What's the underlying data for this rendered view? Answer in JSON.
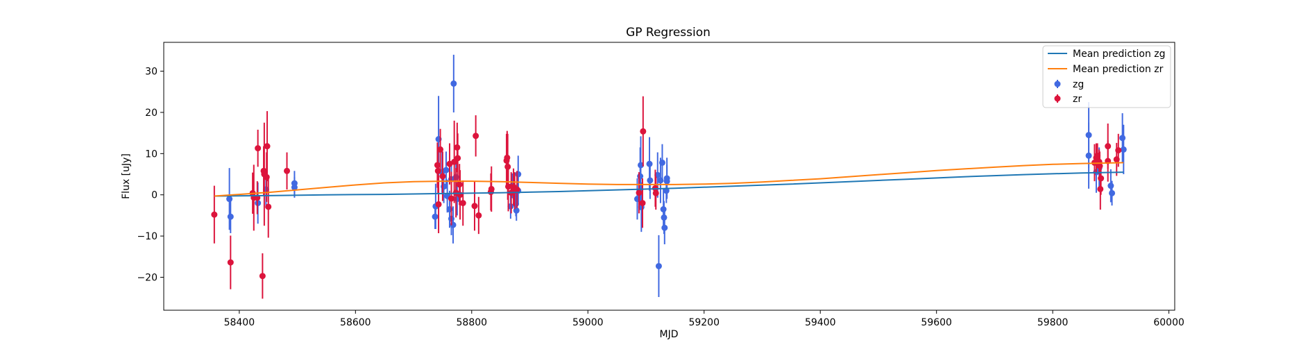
{
  "chart_data": {
    "type": "scatter",
    "title": "GP Regression",
    "xlabel": "MJD",
    "ylabel": "Flux [uJy]",
    "xlim": [
      58270,
      60010
    ],
    "ylim": [
      -28,
      37
    ],
    "xticks": [
      58400,
      58600,
      58800,
      59000,
      59200,
      59400,
      59600,
      59800,
      60000
    ],
    "yticks": [
      -20,
      -10,
      0,
      10,
      20,
      30
    ],
    "grid": false,
    "legend_position": "top-right",
    "lines": [
      {
        "name": "Mean prediction zg",
        "color": "#1f77b4",
        "points": [
          [
            58357,
            -0.3
          ],
          [
            58450,
            -0.2
          ],
          [
            58550,
            0.0
          ],
          [
            58650,
            0.1
          ],
          [
            58750,
            0.3
          ],
          [
            58850,
            0.5
          ],
          [
            58950,
            0.8
          ],
          [
            59050,
            1.2
          ],
          [
            59150,
            1.6
          ],
          [
            59250,
            2.1
          ],
          [
            59350,
            2.6
          ],
          [
            59450,
            3.2
          ],
          [
            59550,
            3.8
          ],
          [
            59650,
            4.4
          ],
          [
            59750,
            4.9
          ],
          [
            59850,
            5.3
          ],
          [
            59922,
            5.5
          ]
        ]
      },
      {
        "name": "Mean prediction zr",
        "color": "#ff7f0e",
        "points": [
          [
            58357,
            -0.3
          ],
          [
            58400,
            0.1
          ],
          [
            58450,
            0.6
          ],
          [
            58500,
            1.2
          ],
          [
            58550,
            1.8
          ],
          [
            58600,
            2.4
          ],
          [
            58650,
            2.9
          ],
          [
            58700,
            3.2
          ],
          [
            58750,
            3.3
          ],
          [
            58800,
            3.3
          ],
          [
            58850,
            3.2
          ],
          [
            58900,
            3.0
          ],
          [
            58950,
            2.8
          ],
          [
            59000,
            2.6
          ],
          [
            59050,
            2.5
          ],
          [
            59100,
            2.5
          ],
          [
            59150,
            2.5
          ],
          [
            59200,
            2.6
          ],
          [
            59250,
            2.8
          ],
          [
            59300,
            3.1
          ],
          [
            59350,
            3.5
          ],
          [
            59400,
            3.9
          ],
          [
            59450,
            4.4
          ],
          [
            59500,
            4.9
          ],
          [
            59550,
            5.4
          ],
          [
            59600,
            5.9
          ],
          [
            59650,
            6.3
          ],
          [
            59700,
            6.7
          ],
          [
            59750,
            7.1
          ],
          [
            59800,
            7.4
          ],
          [
            59850,
            7.6
          ],
          [
            59922,
            7.8
          ]
        ]
      }
    ],
    "series": [
      {
        "name": "zg",
        "color": "#4169e1",
        "points": [
          [
            58383,
            -1.0,
            7.5
          ],
          [
            58385,
            -5.3,
            4.0
          ],
          [
            58432,
            -2.0,
            5.0
          ],
          [
            58446,
            1.3,
            4.5
          ],
          [
            58495,
            2.8,
            3.0
          ],
          [
            58495,
            1.8,
            2.5
          ],
          [
            58737,
            -5.3,
            3.0
          ],
          [
            58738,
            -2.8,
            5.5
          ],
          [
            58743,
            13.5,
            10.5
          ],
          [
            58749,
            5.5,
            5.0
          ],
          [
            58752,
            2.0,
            4.0
          ],
          [
            58756,
            6.0,
            4.5
          ],
          [
            58758,
            -0.3,
            4.0
          ],
          [
            58762,
            -3.5,
            4.5
          ],
          [
            58765,
            3.8,
            4.0
          ],
          [
            58765,
            -5.8,
            4.0
          ],
          [
            58768,
            -7.3,
            4.5
          ],
          [
            58769,
            27.0,
            7.0
          ],
          [
            58773,
            4.3,
            4.0
          ],
          [
            58775,
            -1.0,
            4.0
          ],
          [
            58867,
            -2.8,
            3.0
          ],
          [
            58870,
            2.2,
            3.0
          ],
          [
            58875,
            -0.5,
            3.0
          ],
          [
            58876,
            -2.2,
            3.0
          ],
          [
            58877,
            -3.8,
            2.5
          ],
          [
            58880,
            5.0,
            4.5
          ],
          [
            58880,
            1.0,
            3.5
          ],
          [
            59085,
            -1.0,
            5.0
          ],
          [
            59090,
            4.5,
            7.0
          ],
          [
            59091,
            7.2,
            7.0
          ],
          [
            59092,
            -3.0,
            6.0
          ],
          [
            59106,
            7.5,
            6.5
          ],
          [
            59107,
            3.5,
            4.5
          ],
          [
            59120,
            4.8,
            5.5
          ],
          [
            59122,
            -17.3,
            7.5
          ],
          [
            59125,
            3.5,
            5.5
          ],
          [
            59128,
            7.8,
            4.5
          ],
          [
            59130,
            -3.5,
            5.0
          ],
          [
            59131,
            -5.5,
            4.0
          ],
          [
            59132,
            -8.0,
            4.0
          ],
          [
            59135,
            1.0,
            3.0
          ],
          [
            59136,
            3.3,
            4.0
          ],
          [
            59136,
            4.0,
            5.0
          ],
          [
            59862,
            14.5,
            8.0
          ],
          [
            59862,
            9.5,
            8.0
          ],
          [
            59875,
            5.5,
            5.0
          ],
          [
            59880,
            6.5,
            5.0
          ],
          [
            59900,
            2.2,
            4.0
          ],
          [
            59902,
            0.4,
            3.0
          ],
          [
            59920,
            13.8,
            6.0
          ],
          [
            59922,
            11.0,
            6.0
          ]
        ]
      },
      {
        "name": "zr",
        "color": "#dc143c",
        "points": [
          [
            58357,
            -4.8,
            7.0
          ],
          [
            58385,
            -16.4,
            6.5
          ],
          [
            58423,
            0.4,
            5.0
          ],
          [
            58425,
            -0.7,
            8.0
          ],
          [
            58431,
            -0.7,
            4.0
          ],
          [
            58432,
            11.3,
            4.5
          ],
          [
            58440,
            -19.7,
            5.5
          ],
          [
            58442,
            5.8,
            6.0
          ],
          [
            58443,
            5.0,
            12.5
          ],
          [
            58447,
            4.3,
            6.0
          ],
          [
            58448,
            11.8,
            8.5
          ],
          [
            58450,
            -2.9,
            7.5
          ],
          [
            58482,
            5.8,
            4.5
          ],
          [
            58741,
            7.2,
            5.5
          ],
          [
            58742,
            5.8,
            5.5
          ],
          [
            58743,
            -2.3,
            7.0
          ],
          [
            58746,
            11.0,
            5.0
          ],
          [
            58750,
            4.5,
            6.0
          ],
          [
            58762,
            7.5,
            5.0
          ],
          [
            58765,
            -0.9,
            6.5
          ],
          [
            58770,
            8.0,
            10.0
          ],
          [
            58773,
            0.5,
            6.0
          ],
          [
            58775,
            11.5,
            6.0
          ],
          [
            58776,
            8.9,
            6.0
          ],
          [
            58779,
            2.5,
            5.0
          ],
          [
            58780,
            0.0,
            6.0
          ],
          [
            58785,
            -2.0,
            5.5
          ],
          [
            58805,
            -2.7,
            6.0
          ],
          [
            58807,
            14.3,
            5.0
          ],
          [
            58812,
            -5.0,
            4.5
          ],
          [
            58833,
            0.7,
            4.5
          ],
          [
            58834,
            1.4,
            5.5
          ],
          [
            58860,
            8.3,
            6.5
          ],
          [
            58861,
            9.0,
            6.5
          ],
          [
            58862,
            6.8,
            8.0
          ],
          [
            58863,
            2.0,
            6.0
          ],
          [
            58868,
            0.5,
            5.0
          ],
          [
            58872,
            1.9,
            4.5
          ],
          [
            58874,
            1.0,
            4.5
          ],
          [
            58878,
            1.3,
            4.5
          ],
          [
            59088,
            0.5,
            5.0
          ],
          [
            59094,
            -2.0,
            6.0
          ],
          [
            59095,
            15.4,
            8.5
          ],
          [
            59116,
            1.6,
            4.5
          ],
          [
            59117,
            0.4,
            4.0
          ],
          [
            59872,
            7.8,
            4.5
          ],
          [
            59875,
            9.0,
            3.5
          ],
          [
            59877,
            9.5,
            3.0
          ],
          [
            59880,
            8.0,
            3.0
          ],
          [
            59881,
            7.0,
            3.5
          ],
          [
            59882,
            1.4,
            5.0
          ],
          [
            59883,
            4.0,
            4.0
          ],
          [
            59895,
            11.8,
            5.5
          ],
          [
            59895,
            8.2,
            5.0
          ],
          [
            59910,
            8.6,
            4.0
          ],
          [
            59913,
            10.8,
            4.0
          ]
        ]
      }
    ]
  }
}
